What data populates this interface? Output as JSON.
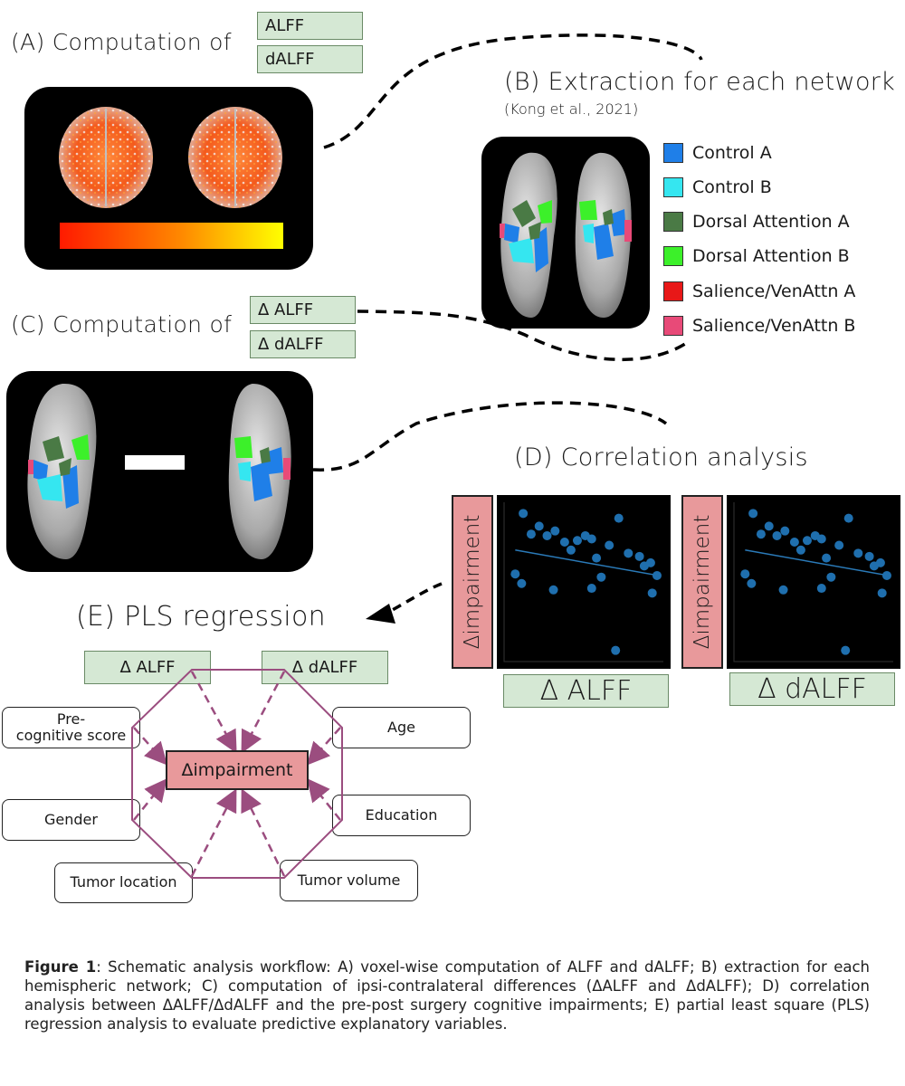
{
  "panel_a": {
    "heading": "(A) Computation of",
    "metrics": [
      "ALFF",
      "dALFF"
    ]
  },
  "panel_b": {
    "heading": "(B) Extraction for each network",
    "citation": "(Kong et al., 2021)",
    "legend": [
      {
        "label": "Control A",
        "color": "#1f7fe8"
      },
      {
        "label": "Control B",
        "color": "#35e6f0"
      },
      {
        "label": "Dorsal Attention A",
        "color": "#4a7a45"
      },
      {
        "label": "Dorsal Attention B",
        "color": "#3cf02a"
      },
      {
        "label": "Salience/VenAttn A",
        "color": "#e81818"
      },
      {
        "label": "Salience/VenAttn B",
        "color": "#e84a78"
      }
    ]
  },
  "panel_c": {
    "heading": "(C) Computation of",
    "metrics": [
      "Δ ALFF",
      "Δ dALFF"
    ]
  },
  "panel_d": {
    "heading": "(D) Correlation analysis",
    "y_label": "Δimpairment",
    "x_labels": [
      "Δ ALFF",
      "Δ dALFF"
    ]
  },
  "panel_e": {
    "heading": "(E) PLS regression",
    "target": "Δimpairment",
    "predictors": {
      "alff": "Δ ALFF",
      "dalff": "Δ dALFF",
      "pre_cog": "Pre-\ncognitive score",
      "age": "Age",
      "gender": "Gender",
      "education": "Education",
      "tumor_location": "Tumor location",
      "tumor_volume": "Tumor volume"
    }
  },
  "caption": {
    "label": "Figure 1",
    "text": ": Schematic analysis workflow: A) voxel-wise computation of ALFF and dALFF; B) extraction for each hemispheric network; C) computation of ipsi-contralateral differences (ΔALFF and ΔdALFF); D) correlation analysis between ΔALFF/ΔdALFF and the pre-post surgery cognitive impairments; E) partial least square (PLS) regression analysis to evaluate predictive explanatory variables."
  },
  "chart_data": [
    {
      "type": "scatter",
      "title": "",
      "xlabel": "Δ ALFF",
      "ylabel": "Δimpairment",
      "x": [
        0.12,
        0.17,
        0.22,
        0.27,
        0.32,
        0.38,
        0.42,
        0.46,
        0.51,
        0.55,
        0.58,
        0.66,
        0.72,
        0.78,
        0.85,
        0.88,
        0.92,
        0.07,
        0.11,
        0.31,
        0.55,
        0.61,
        0.93,
        0.7,
        0.96
      ],
      "y": [
        0.93,
        0.8,
        0.85,
        0.79,
        0.82,
        0.75,
        0.7,
        0.76,
        0.79,
        0.77,
        0.65,
        0.73,
        0.9,
        0.68,
        0.66,
        0.6,
        0.62,
        0.55,
        0.49,
        0.45,
        0.46,
        0.53,
        0.43,
        0.07,
        0.54
      ],
      "trend": [
        [
          0.07,
          0.7
        ],
        [
          0.97,
          0.54
        ]
      ]
    },
    {
      "type": "scatter",
      "title": "",
      "xlabel": "Δ dALFF",
      "ylabel": "Δimpairment",
      "x": [
        0.12,
        0.17,
        0.22,
        0.27,
        0.32,
        0.38,
        0.42,
        0.46,
        0.51,
        0.55,
        0.58,
        0.66,
        0.72,
        0.78,
        0.85,
        0.88,
        0.92,
        0.07,
        0.11,
        0.31,
        0.55,
        0.61,
        0.93,
        0.7,
        0.96
      ],
      "y": [
        0.93,
        0.8,
        0.85,
        0.79,
        0.82,
        0.75,
        0.7,
        0.76,
        0.79,
        0.77,
        0.65,
        0.73,
        0.9,
        0.68,
        0.66,
        0.6,
        0.62,
        0.55,
        0.49,
        0.45,
        0.46,
        0.53,
        0.43,
        0.07,
        0.54
      ],
      "trend": [
        [
          0.07,
          0.7
        ],
        [
          0.97,
          0.54
        ]
      ]
    }
  ]
}
